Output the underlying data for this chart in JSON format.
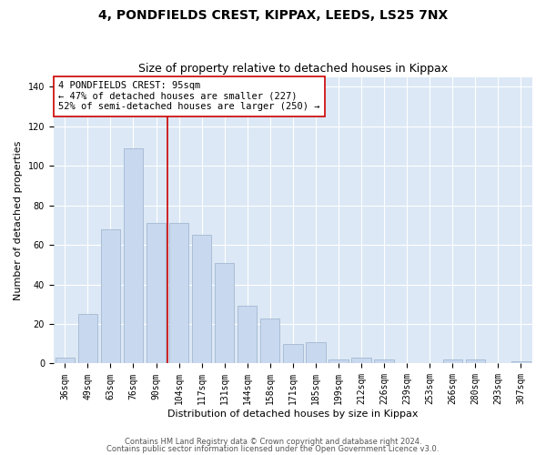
{
  "title1": "4, PONDFIELDS CREST, KIPPAX, LEEDS, LS25 7NX",
  "title2": "Size of property relative to detached houses in Kippax",
  "xlabel": "Distribution of detached houses by size in Kippax",
  "ylabel": "Number of detached properties",
  "categories": [
    "36sqm",
    "49sqm",
    "63sqm",
    "76sqm",
    "90sqm",
    "104sqm",
    "117sqm",
    "131sqm",
    "144sqm",
    "158sqm",
    "171sqm",
    "185sqm",
    "199sqm",
    "212sqm",
    "226sqm",
    "239sqm",
    "253sqm",
    "266sqm",
    "280sqm",
    "293sqm",
    "307sqm"
  ],
  "values": [
    3,
    25,
    68,
    109,
    71,
    71,
    65,
    51,
    29,
    23,
    10,
    11,
    2,
    3,
    2,
    0,
    0,
    2,
    2,
    0,
    1
  ],
  "bar_color": "#c8d8ee",
  "bar_edge_color": "#9ab0cc",
  "vline_color": "#cc0000",
  "annotation_line1": "4 PONDFIELDS CREST: 95sqm",
  "annotation_line2": "← 47% of detached houses are smaller (227)",
  "annotation_line3": "52% of semi-detached houses are larger (250) →",
  "annotation_box_facecolor": "#ffffff",
  "annotation_box_edgecolor": "#cc0000",
  "ylim": [
    0,
    145
  ],
  "yticks": [
    0,
    20,
    40,
    60,
    80,
    100,
    120,
    140
  ],
  "fig_background": "#ffffff",
  "ax_background": "#dce8f5",
  "grid_color": "#ffffff",
  "footer1": "Contains HM Land Registry data © Crown copyright and database right 2024.",
  "footer2": "Contains public sector information licensed under the Open Government Licence v3.0.",
  "title1_fontsize": 10,
  "title2_fontsize": 9,
  "xlabel_fontsize": 8,
  "ylabel_fontsize": 8,
  "tick_fontsize": 7,
  "annotation_fontsize": 7.5,
  "footer_fontsize": 6
}
